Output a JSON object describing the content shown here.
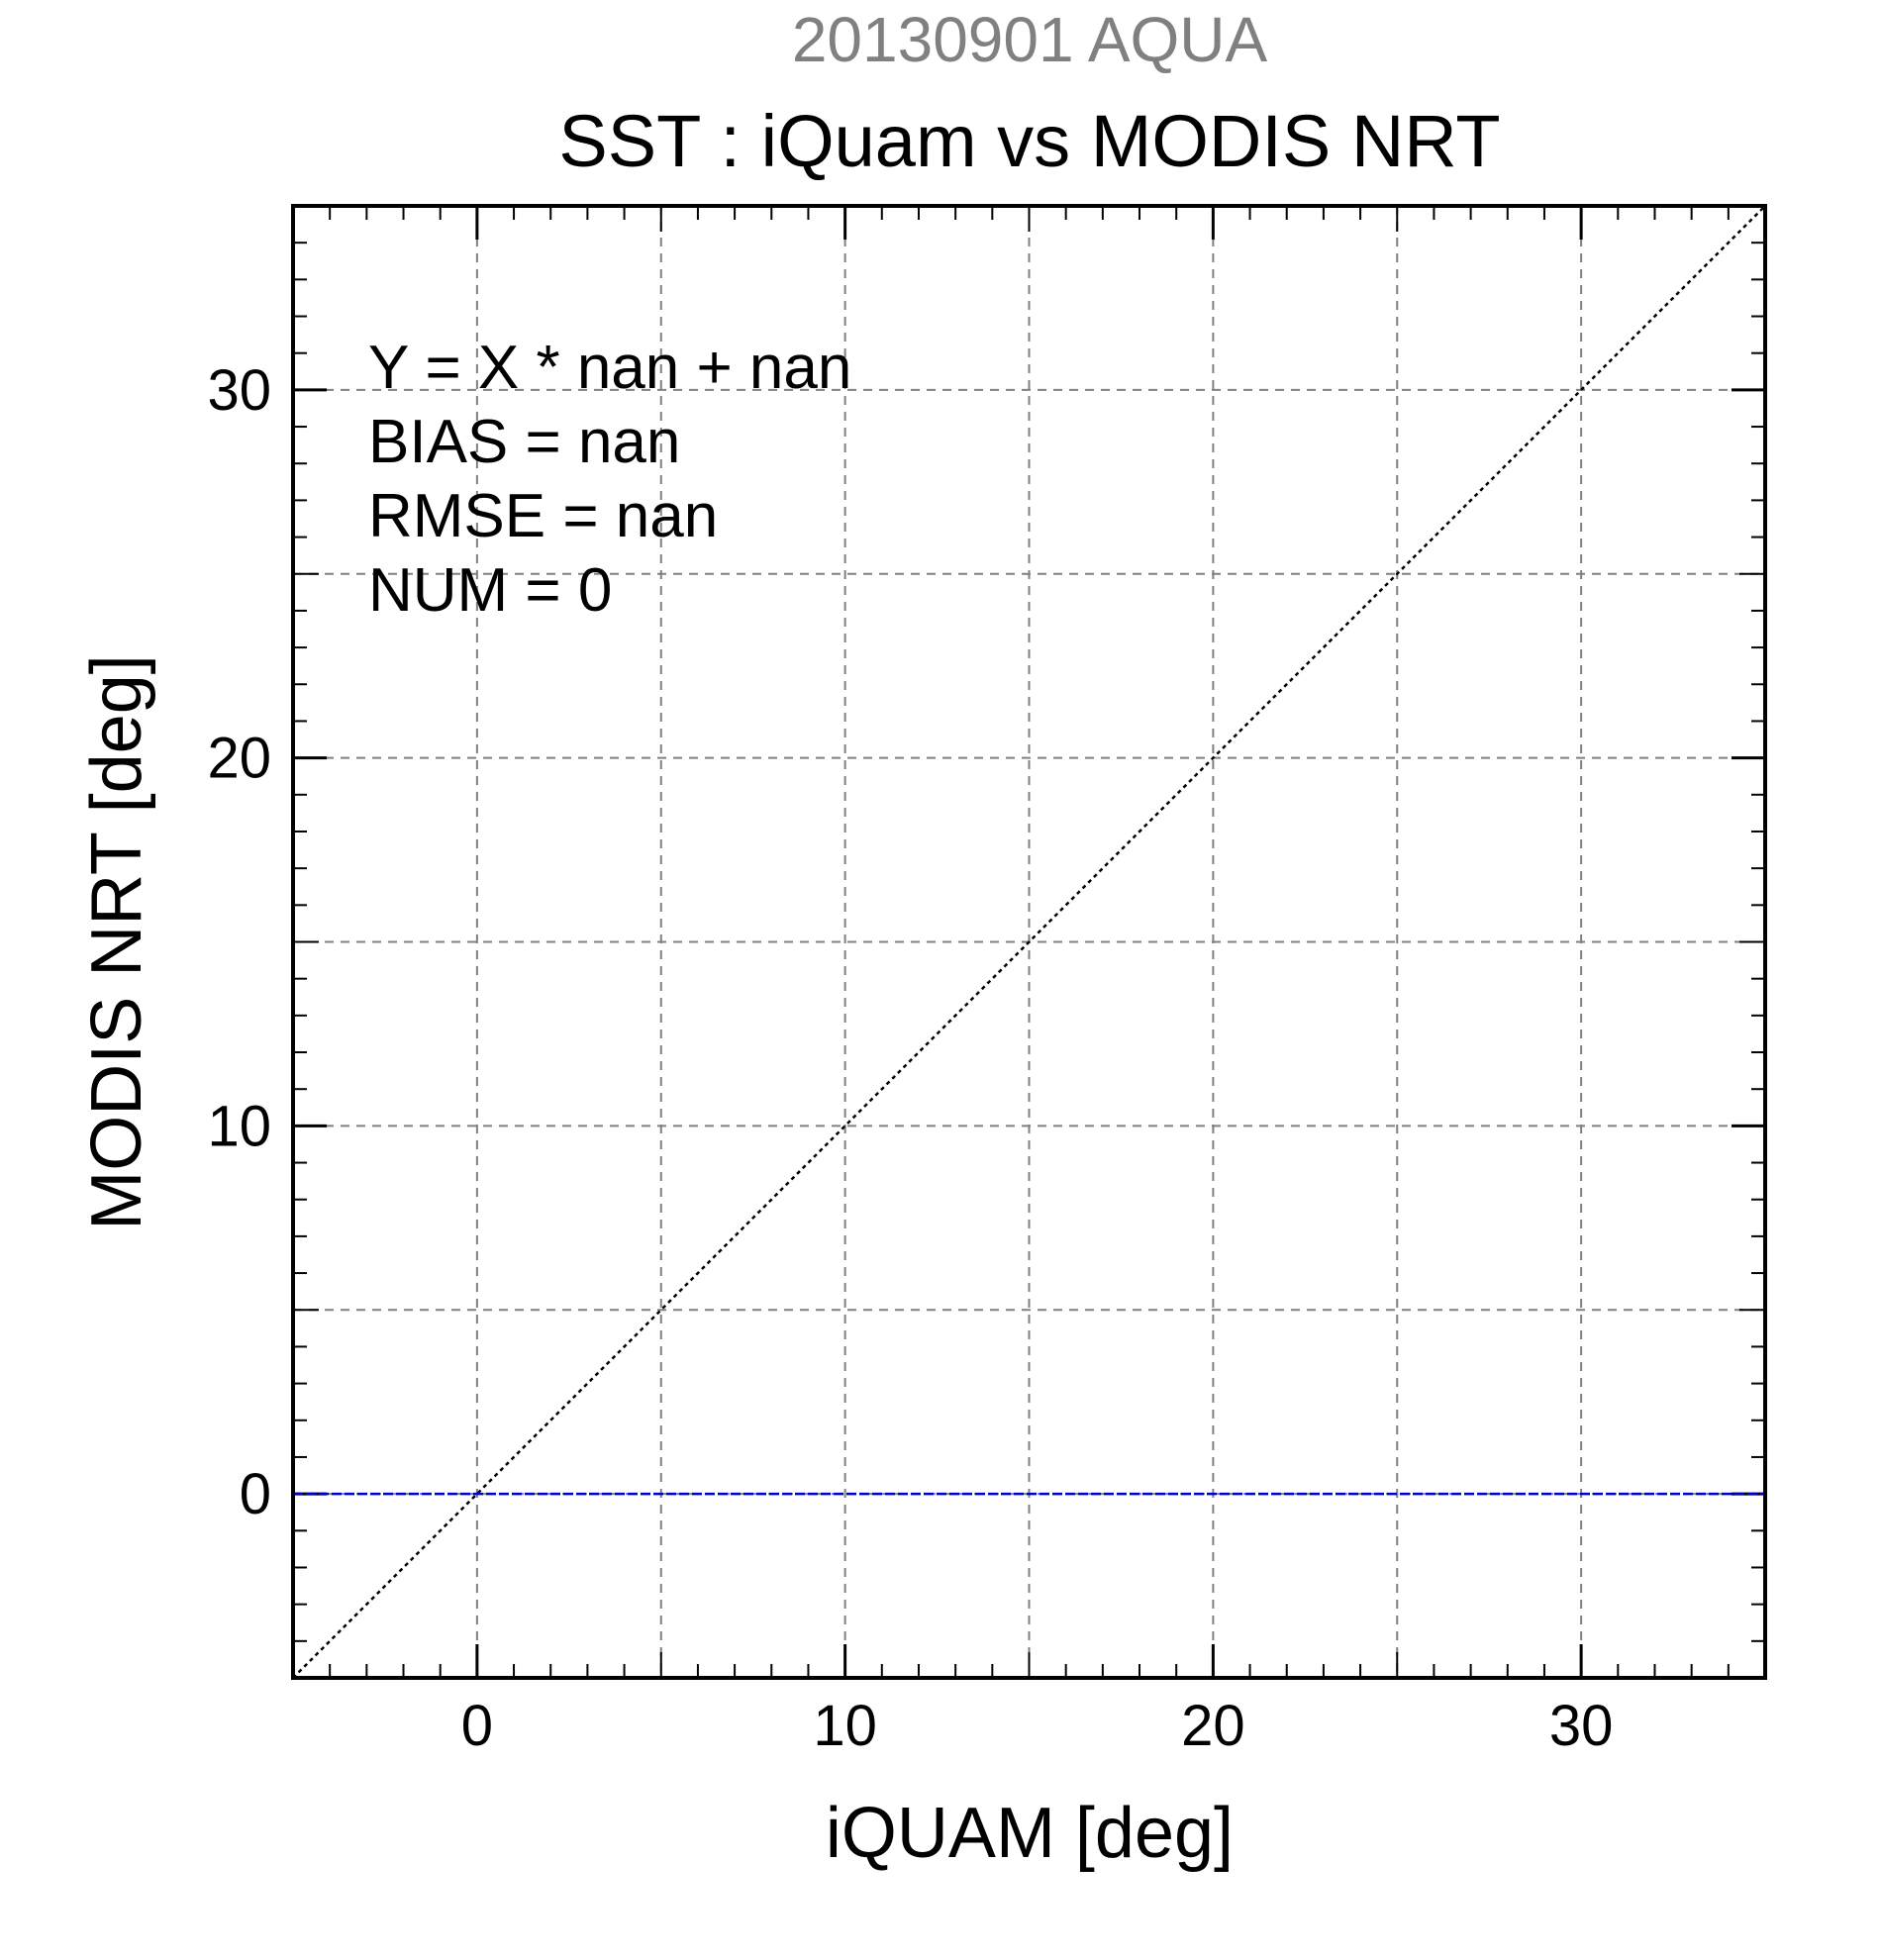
{
  "chart_data": {
    "type": "scatter",
    "date_title": "20130901 AQUA",
    "title": "SST : iQuam vs MODIS NRT",
    "xlabel": "iQUAM [deg]",
    "ylabel": "MODIS NRT [deg]",
    "xlim": [
      -5,
      35
    ],
    "ylim": [
      -5,
      35
    ],
    "x_ticks": [
      0,
      10,
      20,
      30
    ],
    "y_ticks": [
      0,
      10,
      20,
      30
    ],
    "x_tick_labels": [
      "0",
      "10",
      "20",
      "30"
    ],
    "y_tick_labels": [
      "0",
      "10",
      "20",
      "30"
    ],
    "grid_step": 5,
    "minor_tick_step": 1,
    "grid": true,
    "legend": "none",
    "stats_lines": [
      "Y = X * nan + nan",
      "BIAS = nan",
      "RMSE = nan",
      "NUM = 0"
    ],
    "points": [],
    "reference_line": {
      "kind": "identity",
      "style": "dotted",
      "color": "#000000",
      "x": [
        -5,
        35
      ],
      "y": [
        -5,
        35
      ]
    },
    "fit_line": {
      "kind": "regression",
      "style": "dashed",
      "color": "#0000cc",
      "x": [
        -5,
        35
      ],
      "y": [
        0,
        0
      ]
    },
    "colors": {
      "date_title": "#808080",
      "text": "#000000",
      "grid": "#808080",
      "axes": "#000000"
    }
  }
}
